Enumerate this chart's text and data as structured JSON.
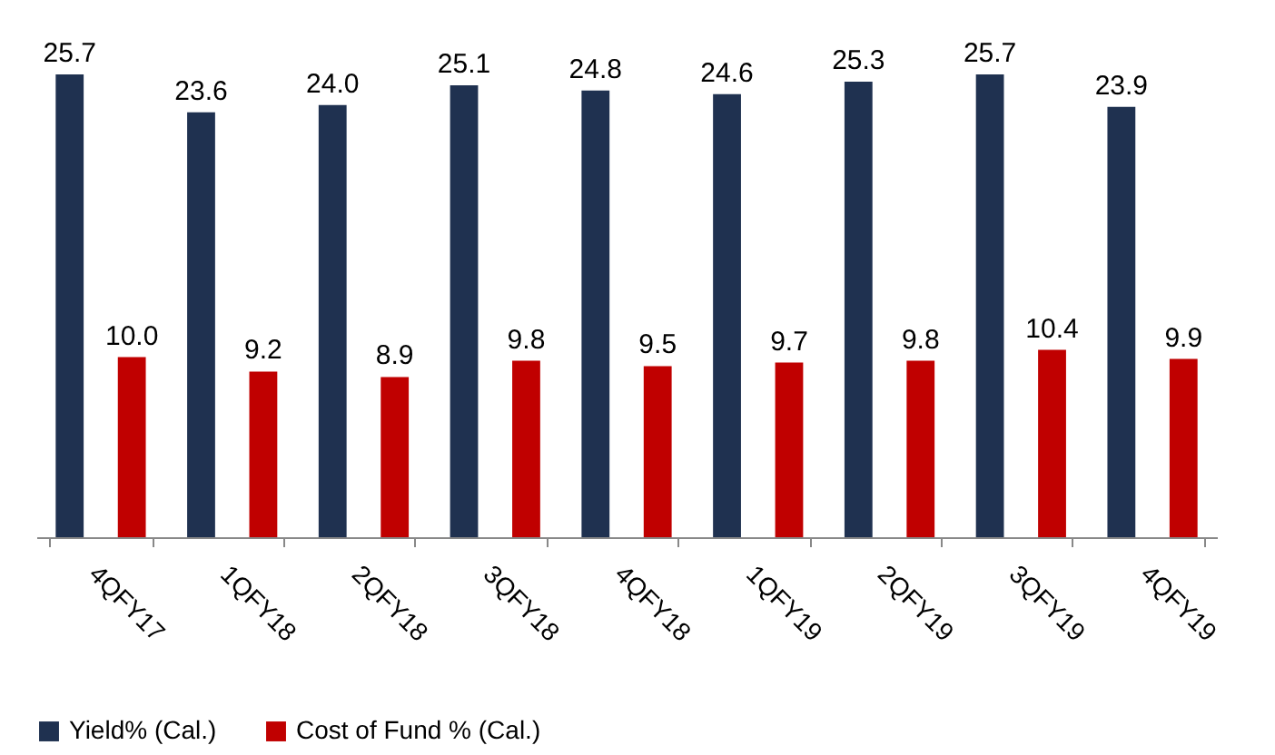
{
  "chart_data": {
    "type": "bar",
    "categories": [
      "4QFY17",
      "1QFY18",
      "2QFY18",
      "3QFY18",
      "4QFY18",
      "1QFY19",
      "2QFY19",
      "3QFY19",
      "4QFY19"
    ],
    "series": [
      {
        "name": "Yield% (Cal.)",
        "color": "#1f3150",
        "values": [
          25.7,
          23.6,
          24.0,
          25.1,
          24.8,
          24.6,
          25.3,
          25.7,
          23.9
        ],
        "value_labels": [
          "25.7",
          "23.6",
          "24.0",
          "25.1",
          "24.8",
          "24.6",
          "25.3",
          "25.7",
          "23.9"
        ]
      },
      {
        "name": "Cost of Fund % (Cal.)",
        "color": "#c00000",
        "values": [
          10.0,
          9.2,
          8.9,
          9.8,
          9.5,
          9.7,
          9.8,
          10.4,
          9.9
        ],
        "value_labels": [
          "10.0",
          "9.2",
          "8.9",
          "9.8",
          "9.5",
          "9.7",
          "9.8",
          "10.4",
          "9.9"
        ]
      }
    ],
    "legend": "bottom",
    "grid": false
  }
}
